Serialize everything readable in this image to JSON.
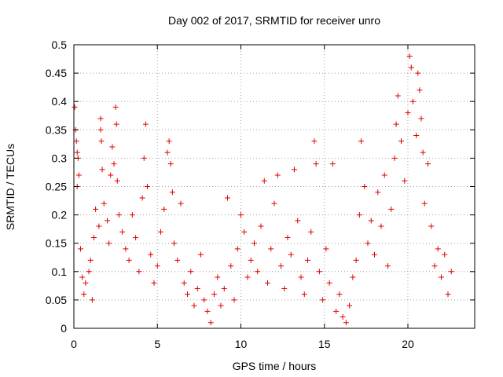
{
  "chart_data": {
    "type": "scatter",
    "title": "Day 002 of 2017, SRMTID for receiver unro",
    "xlabel": "GPS time / hours",
    "ylabel": "SRMTID / TECUs",
    "xlim": [
      0,
      24
    ],
    "ylim": [
      0,
      0.5
    ],
    "xticks": [
      0,
      5,
      10,
      15,
      20
    ],
    "xtick_labels": [
      "0",
      "5",
      "10",
      "15",
      "20"
    ],
    "yticks": [
      0,
      0.05,
      0.1,
      0.15,
      0.2,
      0.25,
      0.3,
      0.35,
      0.4,
      0.45,
      0.5
    ],
    "ytick_labels": [
      "0",
      "0.05",
      "0.1",
      "0.15",
      "0.2",
      "0.25",
      "0.3",
      "0.35",
      "0.4",
      "0.45",
      "0.5"
    ],
    "grid": true,
    "marker": "+",
    "marker_color": "#e00000",
    "series": [
      {
        "name": "SRMTID",
        "points": [
          [
            0.05,
            0.39
          ],
          [
            0.1,
            0.35
          ],
          [
            0.15,
            0.33
          ],
          [
            0.2,
            0.31
          ],
          [
            0.25,
            0.3
          ],
          [
            0.3,
            0.27
          ],
          [
            0.2,
            0.25
          ],
          [
            0.4,
            0.14
          ],
          [
            0.5,
            0.09
          ],
          [
            0.6,
            0.06
          ],
          [
            0.7,
            0.08
          ],
          [
            0.9,
            0.1
          ],
          [
            1.0,
            0.12
          ],
          [
            1.1,
            0.05
          ],
          [
            1.2,
            0.16
          ],
          [
            1.3,
            0.21
          ],
          [
            1.5,
            0.18
          ],
          [
            1.6,
            0.37
          ],
          [
            1.6,
            0.35
          ],
          [
            1.65,
            0.33
          ],
          [
            1.7,
            0.28
          ],
          [
            1.8,
            0.22
          ],
          [
            2.0,
            0.19
          ],
          [
            2.1,
            0.15
          ],
          [
            2.2,
            0.27
          ],
          [
            2.3,
            0.32
          ],
          [
            2.4,
            0.29
          ],
          [
            2.5,
            0.39
          ],
          [
            2.55,
            0.36
          ],
          [
            2.6,
            0.26
          ],
          [
            2.7,
            0.2
          ],
          [
            2.9,
            0.17
          ],
          [
            3.1,
            0.14
          ],
          [
            3.3,
            0.12
          ],
          [
            3.5,
            0.2
          ],
          [
            3.7,
            0.16
          ],
          [
            3.9,
            0.1
          ],
          [
            4.1,
            0.23
          ],
          [
            4.2,
            0.3
          ],
          [
            4.3,
            0.36
          ],
          [
            4.4,
            0.25
          ],
          [
            4.6,
            0.13
          ],
          [
            4.8,
            0.08
          ],
          [
            5.0,
            0.11
          ],
          [
            5.2,
            0.17
          ],
          [
            5.4,
            0.21
          ],
          [
            5.6,
            0.31
          ],
          [
            5.7,
            0.33
          ],
          [
            5.8,
            0.29
          ],
          [
            5.9,
            0.24
          ],
          [
            6.0,
            0.15
          ],
          [
            6.2,
            0.12
          ],
          [
            6.4,
            0.22
          ],
          [
            6.6,
            0.08
          ],
          [
            6.8,
            0.06
          ],
          [
            7.0,
            0.1
          ],
          [
            7.2,
            0.04
          ],
          [
            7.4,
            0.07
          ],
          [
            7.6,
            0.13
          ],
          [
            7.8,
            0.05
          ],
          [
            8.0,
            0.03
          ],
          [
            8.2,
            0.01
          ],
          [
            8.4,
            0.06
          ],
          [
            8.6,
            0.09
          ],
          [
            8.8,
            0.04
          ],
          [
            9.0,
            0.07
          ],
          [
            9.2,
            0.23
          ],
          [
            9.4,
            0.11
          ],
          [
            9.6,
            0.05
          ],
          [
            9.8,
            0.14
          ],
          [
            10.0,
            0.2
          ],
          [
            10.2,
            0.17
          ],
          [
            10.4,
            0.09
          ],
          [
            10.6,
            0.12
          ],
          [
            10.8,
            0.15
          ],
          [
            11.0,
            0.1
          ],
          [
            11.2,
            0.18
          ],
          [
            11.4,
            0.26
          ],
          [
            11.6,
            0.08
          ],
          [
            11.8,
            0.14
          ],
          [
            12.0,
            0.22
          ],
          [
            12.2,
            0.27
          ],
          [
            12.4,
            0.11
          ],
          [
            12.6,
            0.07
          ],
          [
            12.8,
            0.16
          ],
          [
            13.0,
            0.13
          ],
          [
            13.2,
            0.28
          ],
          [
            13.4,
            0.19
          ],
          [
            13.6,
            0.09
          ],
          [
            13.8,
            0.06
          ],
          [
            14.0,
            0.12
          ],
          [
            14.2,
            0.17
          ],
          [
            14.4,
            0.33
          ],
          [
            14.5,
            0.29
          ],
          [
            14.7,
            0.1
          ],
          [
            14.9,
            0.05
          ],
          [
            15.1,
            0.14
          ],
          [
            15.3,
            0.08
          ],
          [
            15.5,
            0.29
          ],
          [
            15.7,
            0.03
          ],
          [
            15.9,
            0.06
          ],
          [
            16.1,
            0.02
          ],
          [
            16.3,
            0.01
          ],
          [
            16.5,
            0.04
          ],
          [
            16.7,
            0.09
          ],
          [
            16.9,
            0.12
          ],
          [
            17.1,
            0.2
          ],
          [
            17.2,
            0.33
          ],
          [
            17.4,
            0.25
          ],
          [
            17.6,
            0.15
          ],
          [
            17.8,
            0.19
          ],
          [
            18.0,
            0.13
          ],
          [
            18.2,
            0.24
          ],
          [
            18.4,
            0.18
          ],
          [
            18.6,
            0.27
          ],
          [
            18.8,
            0.11
          ],
          [
            19.0,
            0.21
          ],
          [
            19.2,
            0.3
          ],
          [
            19.3,
            0.36
          ],
          [
            19.4,
            0.41
          ],
          [
            19.6,
            0.33
          ],
          [
            19.8,
            0.26
          ],
          [
            20.0,
            0.38
          ],
          [
            20.1,
            0.48
          ],
          [
            20.2,
            0.46
          ],
          [
            20.3,
            0.4
          ],
          [
            20.5,
            0.34
          ],
          [
            20.6,
            0.45
          ],
          [
            20.7,
            0.42
          ],
          [
            20.8,
            0.37
          ],
          [
            20.9,
            0.31
          ],
          [
            21.0,
            0.22
          ],
          [
            21.2,
            0.29
          ],
          [
            21.4,
            0.18
          ],
          [
            21.6,
            0.11
          ],
          [
            21.8,
            0.14
          ],
          [
            22.0,
            0.09
          ],
          [
            22.2,
            0.13
          ],
          [
            22.4,
            0.06
          ],
          [
            22.6,
            0.1
          ]
        ]
      }
    ]
  }
}
